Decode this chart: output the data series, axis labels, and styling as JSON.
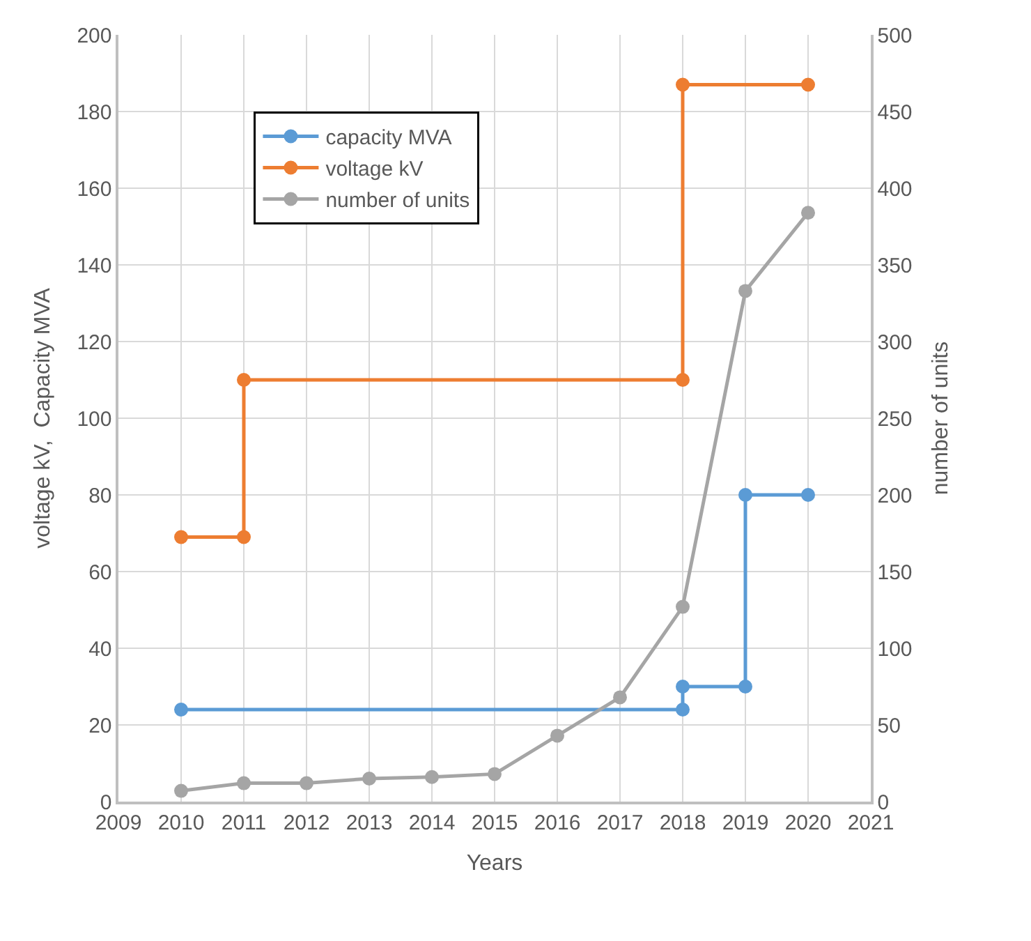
{
  "chart_data": {
    "type": "line",
    "xlabel": "Years",
    "ylabel": "voltage kV,  Capacity MVA",
    "y2label": "number of units",
    "xlim": [
      2009,
      2021
    ],
    "xticks": [
      2009,
      2010,
      2011,
      2012,
      2013,
      2014,
      2015,
      2016,
      2017,
      2018,
      2019,
      2020,
      2021
    ],
    "ylim": [
      0,
      200
    ],
    "yticks": [
      0,
      20,
      40,
      60,
      80,
      100,
      120,
      140,
      160,
      180,
      200
    ],
    "y2lim": [
      0,
      500
    ],
    "y2ticks": [
      0,
      50,
      100,
      150,
      200,
      250,
      300,
      350,
      400,
      450,
      500
    ],
    "grid": true,
    "legend": "top left",
    "marker": "circle",
    "line_style": "solid",
    "series": [
      {
        "name": "capacity MVA",
        "color": "#5b9bd5",
        "x": [
          2010,
          2018,
          2018,
          2019,
          2019,
          2020
        ],
        "values": [
          24,
          24,
          30,
          30,
          80,
          80
        ]
      },
      {
        "name": "voltage kV",
        "color": "#ed7d31",
        "x": [
          2010,
          2011,
          2011,
          2018,
          2018,
          2020
        ],
        "values": [
          69,
          69,
          110,
          110,
          187,
          187
        ]
      },
      {
        "name": "number of units",
        "color": "#a5a5a5",
        "axis": "y2",
        "x": [
          2010,
          2011,
          2012,
          2013,
          2014,
          2015,
          2016,
          2017,
          2018,
          2019,
          2020
        ],
        "values": [
          7,
          12,
          12,
          15,
          16,
          18,
          43,
          68,
          127,
          333,
          384
        ]
      }
    ]
  }
}
